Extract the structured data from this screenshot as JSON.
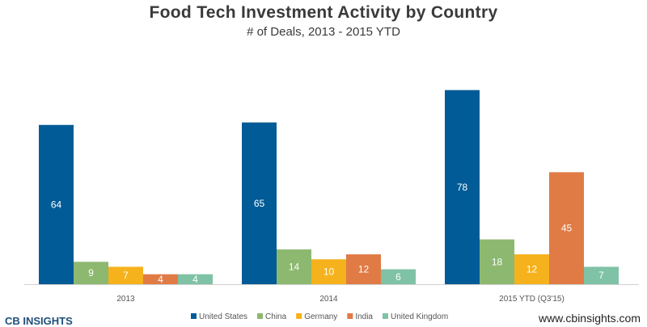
{
  "chart_data": {
    "type": "bar",
    "title": "Food Tech Investment Activity by Country",
    "subtitle": "# of Deals, 2013 - 2015 YTD",
    "categories": [
      "2013",
      "2014",
      "2015 YTD (Q3'15)"
    ],
    "series": [
      {
        "name": "United States",
        "color": "#005b96",
        "values": [
          64,
          65,
          78
        ]
      },
      {
        "name": "China",
        "color": "#8db870",
        "values": [
          9,
          14,
          18
        ]
      },
      {
        "name": "Germany",
        "color": "#f5b21c",
        "values": [
          7,
          10,
          12
        ]
      },
      {
        "name": "India",
        "color": "#e07b45",
        "values": [
          4,
          12,
          45
        ]
      },
      {
        "name": "United Kingdom",
        "color": "#7fc2a5",
        "values": [
          4,
          6,
          7
        ]
      }
    ],
    "ylim": [
      0,
      85
    ],
    "grid": false,
    "legend_position": "bottom"
  },
  "footer": {
    "logo_text": "CB INSIGHTS",
    "website": "www.cbinsights.com"
  }
}
